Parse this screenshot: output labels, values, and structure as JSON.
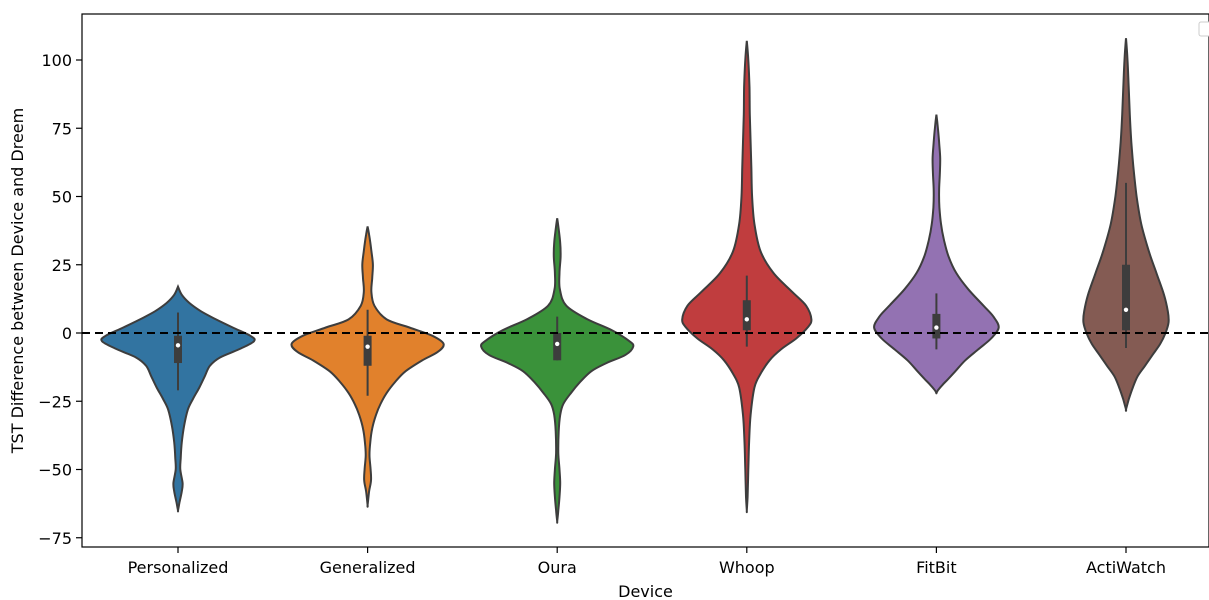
{
  "chart_data": {
    "type": "violin",
    "title": "",
    "xlabel": "Device",
    "ylabel": "TST Difference between Device and Dreem",
    "ylim": [
      -77,
      117
    ],
    "yticks": [
      100,
      75,
      50,
      25,
      0,
      -25,
      -50,
      -75
    ],
    "ytick_labels": [
      "100",
      "75",
      "50",
      "25",
      "0",
      "−25",
      "−50",
      "−75"
    ],
    "reference_line": {
      "y": 0,
      "style": "dashed",
      "color": "#000000"
    },
    "legend": {
      "placement": "top-right",
      "entries": []
    },
    "grid": false,
    "categories": [
      "Personalized",
      "Generalized",
      "Oura",
      "Whoop",
      "FitBit",
      "ActiWatch"
    ],
    "colors": [
      "#3274a1",
      "#e1812c",
      "#3a923a",
      "#c03d3e",
      "#9372b2",
      "#845b53"
    ],
    "series": [
      {
        "category": "Personalized",
        "box": {
          "q1": -11,
          "median": -4.5,
          "q3": -1,
          "whisker_low": -21,
          "whisker_high": 7.5
        },
        "density": [
          [
            17,
            0.0
          ],
          [
            14,
            0.05
          ],
          [
            11,
            0.15
          ],
          [
            8,
            0.3
          ],
          [
            5,
            0.5
          ],
          [
            2,
            0.72
          ],
          [
            -1,
            0.95
          ],
          [
            -3,
            1.0
          ],
          [
            -6,
            0.8
          ],
          [
            -9,
            0.55
          ],
          [
            -12,
            0.42
          ],
          [
            -16,
            0.35
          ],
          [
            -20,
            0.28
          ],
          [
            -24,
            0.2
          ],
          [
            -28,
            0.13
          ],
          [
            -34,
            0.08
          ],
          [
            -40,
            0.05
          ],
          [
            -46,
            0.035
          ],
          [
            -50,
            0.03
          ],
          [
            -55,
            0.06
          ],
          [
            -58,
            0.05
          ],
          [
            -62,
            0.02
          ],
          [
            -65,
            0.0
          ]
        ]
      },
      {
        "category": "Generalized",
        "box": {
          "q1": -12,
          "median": -5,
          "q3": -1,
          "whisker_low": -23,
          "whisker_high": 8.5
        },
        "density": [
          [
            39,
            0.0
          ],
          [
            36,
            0.02
          ],
          [
            30,
            0.05
          ],
          [
            25,
            0.07
          ],
          [
            20,
            0.06
          ],
          [
            15,
            0.05
          ],
          [
            10,
            0.09
          ],
          [
            5,
            0.25
          ],
          [
            2,
            0.55
          ],
          [
            -1,
            0.85
          ],
          [
            -4,
            1.0
          ],
          [
            -7,
            0.92
          ],
          [
            -10,
            0.72
          ],
          [
            -14,
            0.5
          ],
          [
            -18,
            0.36
          ],
          [
            -22,
            0.25
          ],
          [
            -26,
            0.17
          ],
          [
            -30,
            0.11
          ],
          [
            -35,
            0.06
          ],
          [
            -40,
            0.035
          ],
          [
            -45,
            0.025
          ],
          [
            -50,
            0.04
          ],
          [
            -54,
            0.045
          ],
          [
            -58,
            0.02
          ],
          [
            -63,
            0.0
          ]
        ]
      },
      {
        "category": "Oura",
        "box": {
          "q1": -10,
          "median": -4,
          "q3": 0,
          "whisker_low": -10,
          "whisker_high": 6
        },
        "density": [
          [
            42,
            0.0
          ],
          [
            38,
            0.02
          ],
          [
            33,
            0.04
          ],
          [
            28,
            0.045
          ],
          [
            22,
            0.03
          ],
          [
            16,
            0.035
          ],
          [
            10,
            0.12
          ],
          [
            5,
            0.4
          ],
          [
            1,
            0.72
          ],
          [
            -3,
            0.95
          ],
          [
            -5,
            1.0
          ],
          [
            -8,
            0.9
          ],
          [
            -11,
            0.65
          ],
          [
            -14,
            0.45
          ],
          [
            -18,
            0.3
          ],
          [
            -22,
            0.18
          ],
          [
            -26,
            0.08
          ],
          [
            -30,
            0.04
          ],
          [
            -36,
            0.02
          ],
          [
            -44,
            0.015
          ],
          [
            -50,
            0.03
          ],
          [
            -55,
            0.04
          ],
          [
            -60,
            0.03
          ],
          [
            -65,
            0.015
          ],
          [
            -69,
            0.0
          ]
        ]
      },
      {
        "category": "Whoop",
        "box": {
          "q1": 1,
          "median": 5,
          "q3": 12,
          "whisker_low": -5,
          "whisker_high": 21
        },
        "density": [
          [
            107,
            0.0
          ],
          [
            100,
            0.02
          ],
          [
            90,
            0.035
          ],
          [
            80,
            0.04
          ],
          [
            70,
            0.05
          ],
          [
            60,
            0.06
          ],
          [
            50,
            0.07
          ],
          [
            40,
            0.1
          ],
          [
            30,
            0.18
          ],
          [
            22,
            0.35
          ],
          [
            15,
            0.6
          ],
          [
            10,
            0.78
          ],
          [
            5,
            0.85
          ],
          [
            2,
            0.8
          ],
          [
            -2,
            0.65
          ],
          [
            -6,
            0.45
          ],
          [
            -10,
            0.3
          ],
          [
            -15,
            0.18
          ],
          [
            -20,
            0.1
          ],
          [
            -30,
            0.05
          ],
          [
            -40,
            0.03
          ],
          [
            -50,
            0.02
          ],
          [
            -60,
            0.01
          ],
          [
            -65,
            0.0
          ]
        ]
      },
      {
        "category": "FitBit",
        "box": {
          "q1": -2,
          "median": 2,
          "q3": 7,
          "whisker_low": -6,
          "whisker_high": 14.5
        },
        "density": [
          [
            80,
            0.0
          ],
          [
            75,
            0.02
          ],
          [
            70,
            0.035
          ],
          [
            64,
            0.05
          ],
          [
            58,
            0.045
          ],
          [
            52,
            0.035
          ],
          [
            46,
            0.04
          ],
          [
            40,
            0.06
          ],
          [
            34,
            0.1
          ],
          [
            28,
            0.16
          ],
          [
            22,
            0.26
          ],
          [
            16,
            0.42
          ],
          [
            10,
            0.62
          ],
          [
            6,
            0.75
          ],
          [
            2,
            0.82
          ],
          [
            -2,
            0.72
          ],
          [
            -6,
            0.55
          ],
          [
            -10,
            0.38
          ],
          [
            -14,
            0.25
          ],
          [
            -17,
            0.15
          ],
          [
            -19,
            0.08
          ],
          [
            -21,
            0.02
          ],
          [
            -22,
            0.0
          ]
        ]
      },
      {
        "category": "ActiWatch",
        "box": {
          "q1": 1,
          "median": 8.5,
          "q3": 25,
          "whisker_low": -5.5,
          "whisker_high": 55
        },
        "density": [
          [
            108,
            0.0
          ],
          [
            100,
            0.02
          ],
          [
            90,
            0.035
          ],
          [
            80,
            0.05
          ],
          [
            70,
            0.07
          ],
          [
            60,
            0.1
          ],
          [
            50,
            0.14
          ],
          [
            40,
            0.2
          ],
          [
            30,
            0.3
          ],
          [
            22,
            0.4
          ],
          [
            14,
            0.5
          ],
          [
            8,
            0.55
          ],
          [
            4,
            0.56
          ],
          [
            0,
            0.52
          ],
          [
            -4,
            0.45
          ],
          [
            -8,
            0.35
          ],
          [
            -12,
            0.25
          ],
          [
            -16,
            0.15
          ],
          [
            -20,
            0.09
          ],
          [
            -24,
            0.04
          ],
          [
            -28,
            0.0
          ]
        ]
      }
    ]
  }
}
